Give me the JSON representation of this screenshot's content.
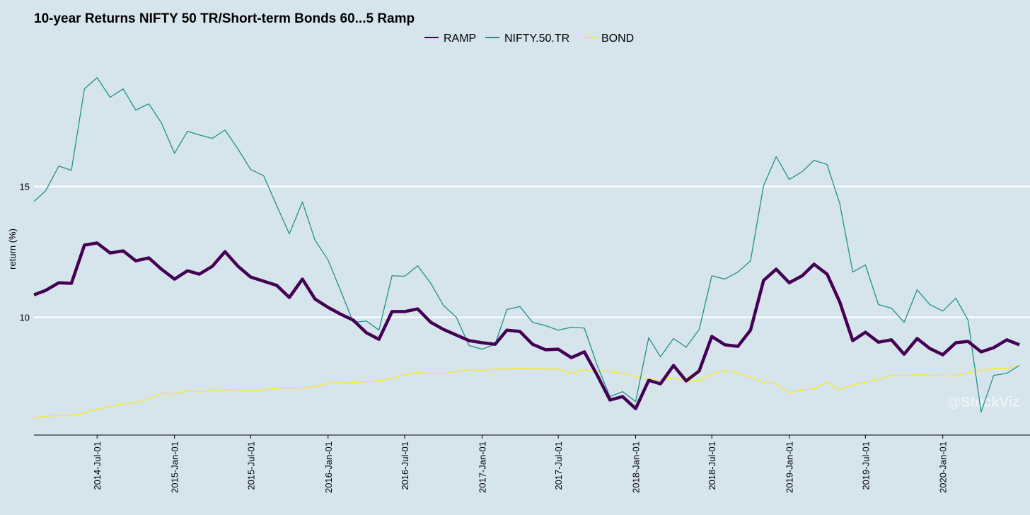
{
  "chart_data": {
    "type": "line",
    "title": "10-year Returns NIFTY 50 TR/Short-term Bonds 60...5 Ramp",
    "y_label": "return (%)",
    "watermark": "@StockViz",
    "x": [
      "2014-02-01",
      "2014-03-01",
      "2014-04-01",
      "2014-05-01",
      "2014-06-01",
      "2014-07-01",
      "2014-08-01",
      "2014-09-01",
      "2014-10-01",
      "2014-11-01",
      "2014-12-01",
      "2015-01-01",
      "2015-02-01",
      "2015-03-01",
      "2015-04-01",
      "2015-05-01",
      "2015-06-01",
      "2015-07-01",
      "2015-08-01",
      "2015-09-01",
      "2015-10-01",
      "2015-11-01",
      "2015-12-01",
      "2016-01-01",
      "2016-02-01",
      "2016-03-01",
      "2016-04-01",
      "2016-05-01",
      "2016-06-01",
      "2016-07-01",
      "2016-08-01",
      "2016-09-01",
      "2016-10-01",
      "2016-11-01",
      "2016-12-01",
      "2017-01-01",
      "2017-02-01",
      "2017-03-01",
      "2017-04-01",
      "2017-05-01",
      "2017-06-01",
      "2017-07-01",
      "2017-08-01",
      "2017-09-01",
      "2017-10-01",
      "2017-11-01",
      "2017-12-01",
      "2018-01-01",
      "2018-02-01",
      "2018-03-01",
      "2018-04-01",
      "2018-05-01",
      "2018-06-01",
      "2018-07-01",
      "2018-08-01",
      "2018-09-01",
      "2018-10-01",
      "2018-11-01",
      "2018-12-01",
      "2019-01-01",
      "2019-02-01",
      "2019-03-01",
      "2019-04-01",
      "2019-05-01",
      "2019-06-01",
      "2019-07-01",
      "2019-08-01",
      "2019-09-01",
      "2019-10-01",
      "2019-11-01",
      "2019-12-01",
      "2020-01-01",
      "2020-02-01",
      "2020-03-01",
      "2020-04-01",
      "2020-05-01",
      "2020-06-01",
      "2020-07-01"
    ],
    "series": [
      {
        "name": "RAMP",
        "color": "#440154",
        "values": [
          10.86,
          11.03,
          11.32,
          11.3,
          12.76,
          12.84,
          12.46,
          12.54,
          12.16,
          12.27,
          11.84,
          11.46,
          11.78,
          11.65,
          11.95,
          12.51,
          11.95,
          11.54,
          11.38,
          11.22,
          10.76,
          11.46,
          10.7,
          10.38,
          10.11,
          9.89,
          9.41,
          9.16,
          10.22,
          10.22,
          10.32,
          9.81,
          9.54,
          9.32,
          9.11,
          9.03,
          8.97,
          9.51,
          9.46,
          8.97,
          8.76,
          8.78,
          8.46,
          8.68,
          7.81,
          6.84,
          6.97,
          6.51,
          7.59,
          7.46,
          8.16,
          7.57,
          7.95,
          9.27,
          8.95,
          8.89,
          9.51,
          11.41,
          11.84,
          11.32,
          11.59,
          12.03,
          11.65,
          10.59,
          9.11,
          9.43,
          9.05,
          9.14,
          8.59,
          9.19,
          8.81,
          8.57,
          9.03,
          9.08,
          8.68,
          8.84,
          9.14,
          8.95
        ]
      },
      {
        "name": "NIFTY.50.TR",
        "color": "#21908c",
        "values": [
          14.43,
          14.84,
          15.78,
          15.62,
          18.73,
          19.16,
          18.41,
          18.73,
          17.92,
          18.16,
          17.43,
          16.27,
          17.11,
          16.97,
          16.84,
          17.16,
          16.43,
          15.65,
          15.41,
          14.27,
          13.19,
          14.41,
          12.95,
          12.19,
          10.97,
          9.81,
          9.86,
          9.51,
          11.59,
          11.57,
          11.97,
          11.3,
          10.46,
          10.0,
          8.92,
          8.78,
          8.97,
          10.3,
          10.41,
          9.81,
          9.68,
          9.51,
          9.62,
          9.59,
          8.19,
          6.97,
          7.16,
          6.78,
          9.22,
          8.49,
          9.19,
          8.86,
          9.54,
          11.59,
          11.46,
          11.73,
          12.16,
          15.03,
          16.14,
          15.27,
          15.57,
          16.0,
          15.84,
          14.35,
          11.73,
          12.0,
          10.49,
          10.35,
          9.81,
          11.05,
          10.49,
          10.24,
          10.73,
          9.89,
          6.38,
          7.78,
          7.86,
          8.16
        ]
      },
      {
        "name": "BOND",
        "color": "#fde725",
        "values": [
          6.16,
          6.22,
          6.24,
          6.24,
          6.35,
          6.49,
          6.59,
          6.7,
          6.73,
          6.89,
          7.11,
          7.08,
          7.19,
          7.14,
          7.19,
          7.24,
          7.22,
          7.19,
          7.22,
          7.3,
          7.32,
          7.3,
          7.35,
          7.49,
          7.49,
          7.51,
          7.54,
          7.57,
          7.68,
          7.81,
          7.89,
          7.86,
          7.86,
          7.92,
          8.0,
          7.95,
          8.03,
          8.03,
          8.05,
          8.05,
          8.03,
          8.03,
          7.86,
          8.0,
          7.97,
          7.92,
          7.86,
          7.73,
          7.65,
          7.62,
          7.68,
          7.59,
          7.59,
          7.84,
          7.97,
          7.86,
          7.73,
          7.51,
          7.46,
          7.11,
          7.22,
          7.27,
          7.51,
          7.24,
          7.41,
          7.51,
          7.62,
          7.78,
          7.76,
          7.81,
          7.78,
          7.76,
          7.76,
          7.89,
          7.95,
          8.05,
          8.05,
          8.14
        ]
      }
    ],
    "xlim": [
      "2014-02-01",
      "2020-07-01"
    ],
    "xticks": [
      {
        "value": "2014-07-01",
        "label": "2014-Jul-01"
      },
      {
        "value": "2015-01-01",
        "label": "2015-Jan-01"
      },
      {
        "value": "2015-07-01",
        "label": "2015-Jul-01"
      },
      {
        "value": "2016-01-01",
        "label": "2016-Jan-01"
      },
      {
        "value": "2016-07-01",
        "label": "2016-Jul-01"
      },
      {
        "value": "2017-01-01",
        "label": "2017-Jan-01"
      },
      {
        "value": "2017-07-01",
        "label": "2017-Jul-01"
      },
      {
        "value": "2018-01-01",
        "label": "2018-Jan-01"
      },
      {
        "value": "2018-07-01",
        "label": "2018-Jul-01"
      },
      {
        "value": "2019-01-01",
        "label": "2019-Jan-01"
      },
      {
        "value": "2019-07-01",
        "label": "2019-Jul-01"
      },
      {
        "value": "2020-01-01",
        "label": "2020-Jan-01"
      }
    ],
    "ylim": [
      5.5,
      20.1
    ],
    "yticks": [
      10,
      15
    ],
    "grid": true,
    "legend": "top"
  }
}
